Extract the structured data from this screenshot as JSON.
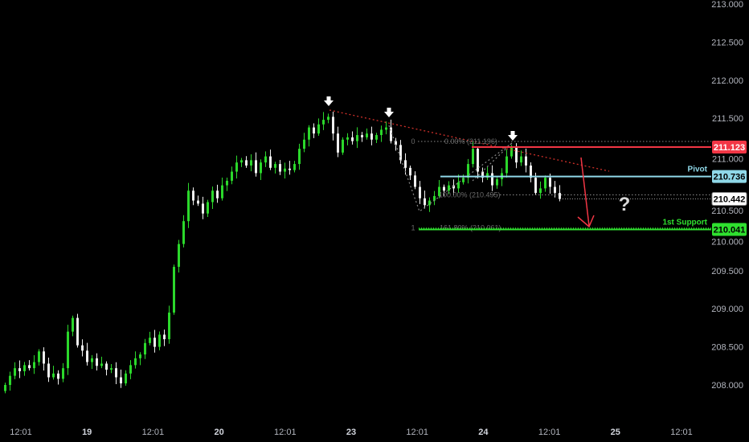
{
  "chart_data": {
    "type": "candlestick",
    "title": "",
    "y_axis": {
      "position": "right",
      "range": [
        207.9,
        213.0
      ],
      "ticks": [
        "213.000",
        "212.500",
        "212.000",
        "211.500",
        "211.000",
        "210.500",
        "210.000",
        "209.500",
        "209.000",
        "208.500",
        "208.000"
      ]
    },
    "x_axis": {
      "ticks": [
        {
          "label": "12:01",
          "day": false
        },
        {
          "label": "19",
          "day": true
        },
        {
          "label": "12:01",
          "day": false
        },
        {
          "label": "20",
          "day": true
        },
        {
          "label": "12:01",
          "day": false
        },
        {
          "label": "23",
          "day": true
        },
        {
          "label": "12:01",
          "day": false
        },
        {
          "label": "24",
          "day": true
        },
        {
          "label": "12:01",
          "day": false
        },
        {
          "label": "25",
          "day": true
        },
        {
          "label": "12:01",
          "day": false
        }
      ]
    },
    "grid": false,
    "first_open": 207.92,
    "closes": [
      208.0,
      208.12,
      208.22,
      208.18,
      208.26,
      208.22,
      208.3,
      208.44,
      208.28,
      208.1,
      208.15,
      208.08,
      208.22,
      208.7,
      208.88,
      208.52,
      208.45,
      208.3,
      208.35,
      208.25,
      208.28,
      208.2,
      208.22,
      208.1,
      208.02,
      208.15,
      208.26,
      208.35,
      208.4,
      208.55,
      208.62,
      208.5,
      208.66,
      208.6,
      208.95,
      209.55,
      209.85,
      210.15,
      210.55,
      210.42,
      210.38,
      210.25,
      210.4,
      210.55,
      210.45,
      210.62,
      210.68,
      210.8,
      210.92,
      210.95,
      210.88,
      210.95,
      210.78,
      210.92,
      211.0,
      210.85,
      210.9,
      210.8,
      210.84,
      210.82,
      210.9,
      211.1,
      211.22,
      211.38,
      211.3,
      211.42,
      211.48,
      211.52,
      211.3,
      211.05,
      211.22,
      211.25,
      211.2,
      211.28,
      211.25,
      211.3,
      211.22,
      211.28,
      211.35,
      211.38,
      211.2,
      211.15,
      210.95,
      210.85,
      210.75,
      210.6,
      210.45,
      210.36,
      210.42,
      210.48,
      210.6,
      210.55,
      210.62,
      210.58,
      210.66,
      210.72,
      210.9,
      211.1,
      210.8,
      210.72,
      210.78,
      210.62,
      210.7,
      210.78,
      211.0,
      211.12,
      210.92,
      211.0,
      210.88,
      210.72,
      210.52,
      210.58,
      210.72,
      210.6,
      210.52,
      210.44
    ],
    "colors": {
      "up": "#2bd82b",
      "down": "#f0f0f0",
      "background": "#000000"
    },
    "levels": [
      {
        "name": "resistance",
        "value": 211.123,
        "label": "211.123",
        "color": "#f23645",
        "text_color": "#ffffff"
      },
      {
        "name": "pivot",
        "value": 210.736,
        "label": "210.736",
        "caption": "Pivot",
        "color": "#8fd8e8",
        "text_color": "#000000"
      },
      {
        "name": "last-price",
        "value": 210.442,
        "label": "210.442",
        "color": "#ffffff",
        "text_color": "#000000"
      },
      {
        "name": "support",
        "value": 210.041,
        "label": "210.041",
        "caption": "1st Support",
        "color": "#2fe02f",
        "text_color": "#000000"
      }
    ],
    "fibonacci": {
      "levels": [
        {
          "ratio_label": "0",
          "text": "0.00% (211.196)",
          "value": 211.196
        },
        {
          "ratio_label": "",
          "text": "100.00% (210.495)",
          "value": 210.495
        },
        {
          "ratio_label": "1",
          "text": "161.80% (210.061)",
          "value": 210.061
        }
      ]
    },
    "annotations": {
      "question_mark": "?",
      "arrows_down": 3,
      "projection_arrow_color": "#f23645"
    }
  }
}
